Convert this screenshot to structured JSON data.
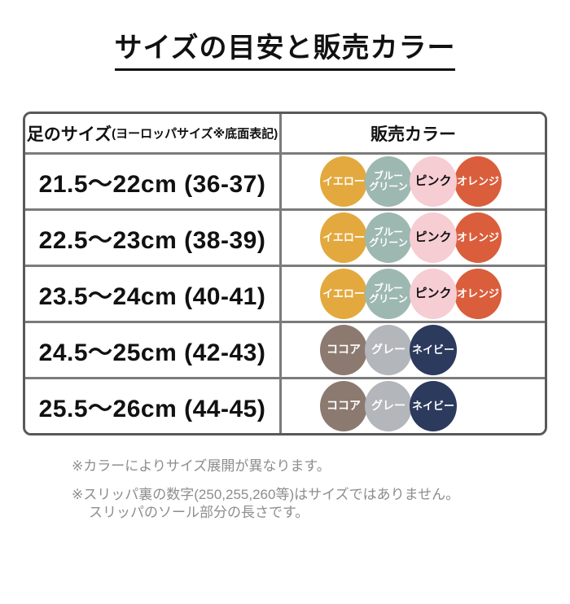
{
  "title": "サイズの目安と販売カラー",
  "table": {
    "header": {
      "size_col_main": "足のサイズ",
      "size_col_sub": "(ヨーロッパサイズ※底面表記)",
      "color_col": "販売カラー"
    },
    "rows": [
      {
        "size": "21.5〜22cm (36-37)",
        "colors": [
          "yellow",
          "bluegreen",
          "pink",
          "orange"
        ]
      },
      {
        "size": "22.5〜23cm (38-39)",
        "colors": [
          "yellow",
          "bluegreen",
          "pink",
          "orange"
        ]
      },
      {
        "size": "23.5〜24cm (40-41)",
        "colors": [
          "yellow",
          "bluegreen",
          "pink",
          "orange"
        ]
      },
      {
        "size": "24.5〜25cm (42-43)",
        "colors": [
          "cocoa",
          "gray",
          "navy"
        ]
      },
      {
        "size": "25.5〜26cm (44-45)",
        "colors": [
          "cocoa",
          "gray",
          "navy"
        ]
      }
    ]
  },
  "color_defs": {
    "yellow": {
      "label": "イエロー",
      "bg": "#E3A93E",
      "text": "#FFFFFF",
      "font_size": 13
    },
    "bluegreen": {
      "label": "ブルー\nグリーン",
      "bg": "#9DB8B0",
      "text": "#FFFFFF",
      "font_size": 12
    },
    "pink": {
      "label": "ピンク",
      "bg": "#F6CDD3",
      "text": "#111111",
      "font_size": 15
    },
    "orange": {
      "label": "オレンジ",
      "bg": "#DA5E3C",
      "text": "#FFFFFF",
      "font_size": 13
    },
    "cocoa": {
      "label": "ココア",
      "bg": "#8C7A70",
      "text": "#FFFFFF",
      "font_size": 14
    },
    "gray": {
      "label": "グレー",
      "bg": "#B3B6BA",
      "text": "#FFFFFF",
      "font_size": 14
    },
    "navy": {
      "label": "ネイビー",
      "bg": "#2C3A5E",
      "text": "#FFFFFF",
      "font_size": 13
    }
  },
  "notes": {
    "note1": "※カラーによりサイズ展開が異なります。",
    "note2_line1": "※スリッパ裏の数字(250,255,260等)はサイズではありません。",
    "note2_line2": "スリッパのソール部分の長さです。"
  },
  "chart_data": {
    "type": "table",
    "title": "サイズの目安と販売カラー",
    "columns": [
      "足のサイズ(ヨーロッパサイズ※底面表記)",
      "販売カラー"
    ],
    "rows": [
      {
        "size": "21.5〜22cm (36-37)",
        "colors": [
          "イエロー",
          "ブルーグリーン",
          "ピンク",
          "オレンジ"
        ]
      },
      {
        "size": "22.5〜23cm (38-39)",
        "colors": [
          "イエロー",
          "ブルーグリーン",
          "ピンク",
          "オレンジ"
        ]
      },
      {
        "size": "23.5〜24cm (40-41)",
        "colors": [
          "イエロー",
          "ブルーグリーン",
          "ピンク",
          "オレンジ"
        ]
      },
      {
        "size": "24.5〜25cm (42-43)",
        "colors": [
          "ココア",
          "グレー",
          "ネイビー"
        ]
      },
      {
        "size": "25.5〜26cm (44-45)",
        "colors": [
          "ココア",
          "グレー",
          "ネイビー"
        ]
      }
    ],
    "color_hex": {
      "イエロー": "#E3A93E",
      "ブルーグリーン": "#9DB8B0",
      "ピンク": "#F6CDD3",
      "オレンジ": "#DA5E3C",
      "ココア": "#8C7A70",
      "グレー": "#B3B6BA",
      "ネイビー": "#2C3A5E"
    },
    "notes": [
      "※カラーによりサイズ展開が異なります。",
      "※スリッパ裏の数字(250,255,260等)はサイズではありません。スリッパのソール部分の長さです。"
    ]
  }
}
